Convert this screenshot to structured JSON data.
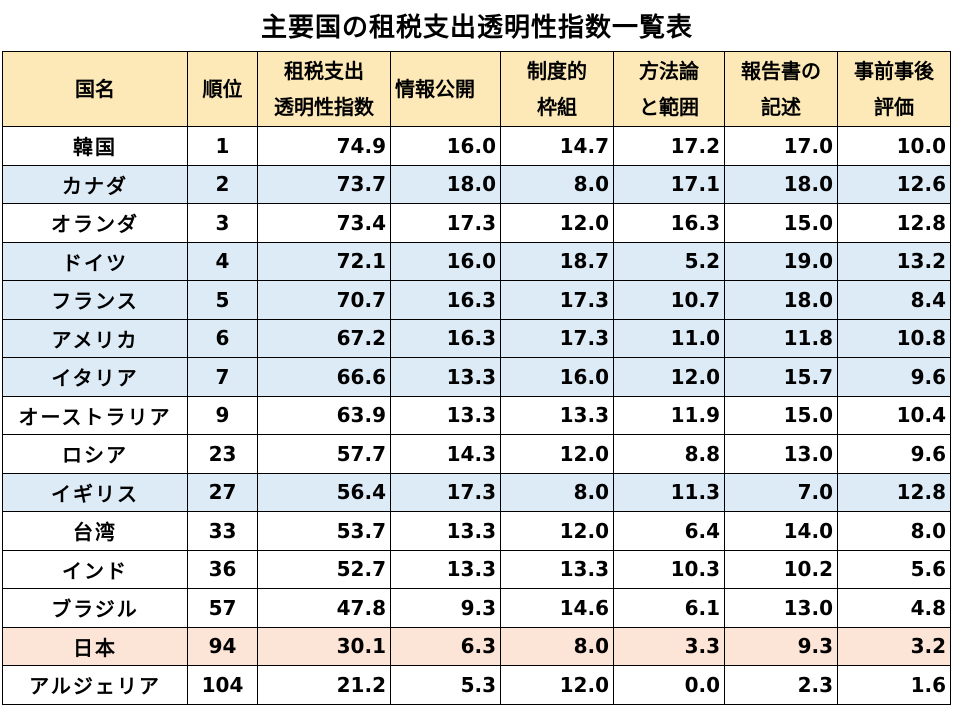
{
  "chart_data": {
    "type": "table",
    "title": "主要国の租税支出透明性指数一覧表",
    "columns": [
      {
        "label": "国名",
        "lines": [
          "国名"
        ]
      },
      {
        "label": "順位",
        "lines": [
          "順位"
        ]
      },
      {
        "label": "租税支出透明性指数",
        "lines": [
          "租税支出",
          "透明性指数"
        ]
      },
      {
        "label": "情報公開",
        "lines": [
          "情報公開"
        ]
      },
      {
        "label": "制度的枠組",
        "lines": [
          "制度的",
          "枠組"
        ]
      },
      {
        "label": "方法論と範囲",
        "lines": [
          "方法論",
          "と範囲"
        ]
      },
      {
        "label": "報告書の記述",
        "lines": [
          "報告書の",
          "記述"
        ]
      },
      {
        "label": "事前事後評価",
        "lines": [
          "事前事後",
          "評価"
        ]
      }
    ],
    "rows": [
      {
        "country": "韓国",
        "rank": "1",
        "values": [
          "74.9",
          "16.0",
          "14.7",
          "17.2",
          "17.0",
          "10.0"
        ],
        "highlight": "white"
      },
      {
        "country": "カナダ",
        "rank": "2",
        "values": [
          "73.7",
          "18.0",
          "8.0",
          "17.1",
          "18.0",
          "12.6"
        ],
        "highlight": "blue"
      },
      {
        "country": "オランダ",
        "rank": "3",
        "values": [
          "73.4",
          "17.3",
          "12.0",
          "16.3",
          "15.0",
          "12.8"
        ],
        "highlight": "white"
      },
      {
        "country": "ドイツ",
        "rank": "4",
        "values": [
          "72.1",
          "16.0",
          "18.7",
          "5.2",
          "19.0",
          "13.2"
        ],
        "highlight": "blue"
      },
      {
        "country": "フランス",
        "rank": "5",
        "values": [
          "70.7",
          "16.3",
          "17.3",
          "10.7",
          "18.0",
          "8.4"
        ],
        "highlight": "blue"
      },
      {
        "country": "アメリカ",
        "rank": "6",
        "values": [
          "67.2",
          "16.3",
          "17.3",
          "11.0",
          "11.8",
          "10.8"
        ],
        "highlight": "blue"
      },
      {
        "country": "イタリア",
        "rank": "7",
        "values": [
          "66.6",
          "13.3",
          "16.0",
          "12.0",
          "15.7",
          "9.6"
        ],
        "highlight": "blue"
      },
      {
        "country": "オーストラリア",
        "rank": "9",
        "values": [
          "63.9",
          "13.3",
          "13.3",
          "11.9",
          "15.0",
          "10.4"
        ],
        "highlight": "white"
      },
      {
        "country": "ロシア",
        "rank": "23",
        "values": [
          "57.7",
          "14.3",
          "12.0",
          "8.8",
          "13.0",
          "9.6"
        ],
        "highlight": "white"
      },
      {
        "country": "イギリス",
        "rank": "27",
        "values": [
          "56.4",
          "17.3",
          "8.0",
          "11.3",
          "7.0",
          "12.8"
        ],
        "highlight": "blue"
      },
      {
        "country": "台湾",
        "rank": "33",
        "values": [
          "53.7",
          "13.3",
          "12.0",
          "6.4",
          "14.0",
          "8.0"
        ],
        "highlight": "white"
      },
      {
        "country": "インド",
        "rank": "36",
        "values": [
          "52.7",
          "13.3",
          "13.3",
          "10.3",
          "10.2",
          "5.6"
        ],
        "highlight": "white"
      },
      {
        "country": "ブラジル",
        "rank": "57",
        "values": [
          "47.8",
          "9.3",
          "14.6",
          "6.1",
          "13.0",
          "4.8"
        ],
        "highlight": "white"
      },
      {
        "country": "日本",
        "rank": "94",
        "values": [
          "30.1",
          "6.3",
          "8.0",
          "3.3",
          "9.3",
          "3.2"
        ],
        "highlight": "orange"
      },
      {
        "country": "アルジェリア",
        "rank": "104",
        "values": [
          "21.2",
          "5.3",
          "12.0",
          "0.0",
          "2.3",
          "1.6"
        ],
        "highlight": "white"
      }
    ],
    "colors": {
      "header": "#fde9b8",
      "blue": "#ddebf7",
      "orange": "#fce4d6",
      "white": "#ffffff"
    }
  }
}
